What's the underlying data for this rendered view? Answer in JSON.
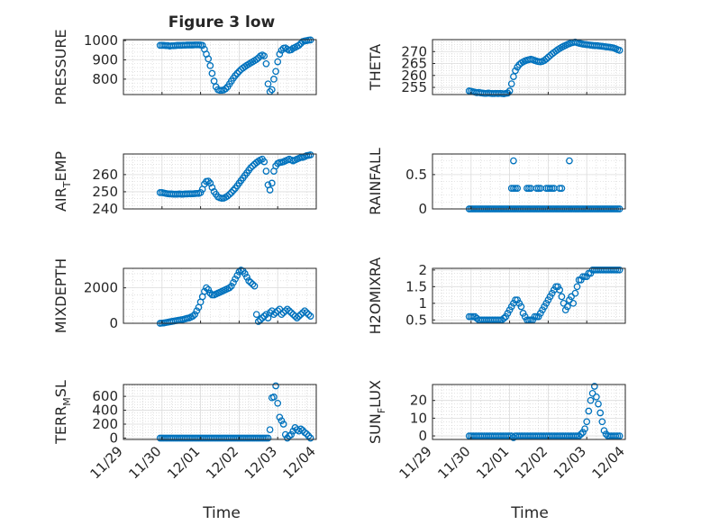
{
  "figure": {
    "title": "Figure 3 low",
    "xlabel": "Time",
    "x_ticks": [
      "11/29",
      "11/30",
      "12/01",
      "12/02",
      "12/03",
      "12/04"
    ]
  },
  "chart_data": [
    {
      "type": "scatter",
      "ylabel": "PRESSURE",
      "grid": true,
      "color": "#0072BD",
      "xlim": [
        0,
        5
      ],
      "ylim": [
        720,
        1005
      ],
      "yticks": [
        800,
        900,
        1000
      ],
      "x": [
        0.95,
        1.0,
        1.05,
        1.1,
        1.15,
        1.2,
        1.25,
        1.3,
        1.35,
        1.4,
        1.45,
        1.5,
        1.55,
        1.6,
        1.65,
        1.7,
        1.75,
        1.8,
        1.85,
        1.9,
        1.95,
        2.0,
        2.05,
        2.1,
        2.15,
        2.2,
        2.25,
        2.3,
        2.35,
        2.4,
        2.45,
        2.5,
        2.55,
        2.6,
        2.65,
        2.7,
        2.75,
        2.8,
        2.85,
        2.9,
        2.95,
        3.0,
        3.05,
        3.1,
        3.15,
        3.2,
        3.25,
        3.3,
        3.35,
        3.4,
        3.45,
        3.5,
        3.55,
        3.6,
        3.65,
        3.7,
        3.75,
        3.8,
        3.85,
        3.9,
        3.95,
        4.0,
        4.05,
        4.1,
        4.15,
        4.2,
        4.25,
        4.3,
        4.35,
        4.4,
        4.45,
        4.5,
        4.55,
        4.6,
        4.65,
        4.7,
        4.75,
        4.8,
        4.85
      ],
      "y": [
        975,
        975,
        975,
        974,
        974,
        972,
        973,
        973,
        974,
        975,
        975,
        975,
        976,
        976,
        977,
        977,
        977,
        977,
        978,
        978,
        978,
        977,
        975,
        955,
        930,
        905,
        870,
        830,
        790,
        760,
        745,
        742,
        742,
        744,
        750,
        760,
        775,
        790,
        805,
        818,
        830,
        840,
        850,
        858,
        865,
        872,
        878,
        884,
        890,
        896,
        902,
        910,
        920,
        925,
        920,
        880,
        775,
        735,
        745,
        800,
        840,
        890,
        930,
        950,
        960,
        962,
        955,
        950,
        952,
        960,
        965,
        970,
        975,
        985,
        995,
        998,
        1000,
        1002,
        1003
      ]
    },
    {
      "type": "scatter",
      "ylabel": "THETA",
      "grid": true,
      "color": "#0072BD",
      "xlim": [
        0,
        5
      ],
      "ylim": [
        252,
        275
      ],
      "yticks": [
        255,
        260,
        265,
        270
      ],
      "x": [
        0.95,
        1.0,
        1.05,
        1.1,
        1.15,
        1.2,
        1.25,
        1.3,
        1.35,
        1.4,
        1.45,
        1.5,
        1.55,
        1.6,
        1.65,
        1.7,
        1.75,
        1.8,
        1.85,
        1.9,
        1.95,
        2.0,
        2.05,
        2.1,
        2.15,
        2.2,
        2.25,
        2.3,
        2.35,
        2.4,
        2.45,
        2.5,
        2.55,
        2.6,
        2.65,
        2.7,
        2.75,
        2.8,
        2.85,
        2.9,
        2.95,
        3.0,
        3.05,
        3.1,
        3.15,
        3.2,
        3.25,
        3.3,
        3.35,
        3.4,
        3.45,
        3.5,
        3.55,
        3.6,
        3.65,
        3.7,
        3.75,
        3.8,
        3.85,
        3.9,
        3.95,
        4.0,
        4.05,
        4.1,
        4.15,
        4.2,
        4.25,
        4.3,
        4.35,
        4.4,
        4.45,
        4.5,
        4.55,
        4.6,
        4.65,
        4.7,
        4.75,
        4.8,
        4.85
      ],
      "y": [
        253.5,
        253.4,
        253.2,
        253.0,
        252.8,
        252.9,
        252.7,
        252.6,
        252.5,
        252.5,
        252.6,
        252.5,
        252.4,
        252.4,
        252.5,
        252.4,
        252.5,
        252.4,
        252.3,
        252.5,
        252.6,
        253.5,
        256.5,
        259.5,
        262,
        263.5,
        264.5,
        265.2,
        265.7,
        266.1,
        266.4,
        266.6,
        266.8,
        266.6,
        266.3,
        266.0,
        265.8,
        265.7,
        265.9,
        266.3,
        266.9,
        267.6,
        268.3,
        269.0,
        269.6,
        270.2,
        270.8,
        271.3,
        271.8,
        272.2,
        272.6,
        273.0,
        273.3,
        273.6,
        273.8,
        274.0,
        273.7,
        273.5,
        273.3,
        273.1,
        273.0,
        272.9,
        272.8,
        272.7,
        272.6,
        272.5,
        272.5,
        272.4,
        272.3,
        272.2,
        272.1,
        272.0,
        271.9,
        271.8,
        271.7,
        271.5,
        271.2,
        270.8,
        270.5
      ]
    },
    {
      "type": "scatter",
      "ylabel": "AIR_TEMP",
      "grid": true,
      "color": "#0072BD",
      "xlim": [
        0,
        5
      ],
      "ylim": [
        240,
        272
      ],
      "yticks": [
        240,
        250,
        260
      ],
      "x": [
        0.95,
        1.0,
        1.05,
        1.1,
        1.15,
        1.2,
        1.25,
        1.3,
        1.35,
        1.4,
        1.45,
        1.5,
        1.55,
        1.6,
        1.65,
        1.7,
        1.75,
        1.8,
        1.85,
        1.9,
        1.95,
        2.0,
        2.05,
        2.1,
        2.15,
        2.2,
        2.25,
        2.3,
        2.35,
        2.4,
        2.45,
        2.5,
        2.55,
        2.6,
        2.65,
        2.7,
        2.75,
        2.8,
        2.85,
        2.9,
        2.95,
        3.0,
        3.05,
        3.1,
        3.15,
        3.2,
        3.25,
        3.3,
        3.35,
        3.4,
        3.45,
        3.5,
        3.55,
        3.6,
        3.65,
        3.7,
        3.75,
        3.8,
        3.85,
        3.9,
        3.95,
        4.0,
        4.05,
        4.1,
        4.15,
        4.2,
        4.25,
        4.3,
        4.35,
        4.4,
        4.45,
        4.5,
        4.55,
        4.6,
        4.65,
        4.7,
        4.75,
        4.8,
        4.85
      ],
      "y": [
        249.5,
        249.5,
        249.3,
        249.0,
        248.8,
        248.7,
        248.7,
        248.6,
        248.6,
        248.6,
        248.7,
        248.6,
        248.6,
        248.7,
        248.7,
        248.8,
        248.8,
        248.8,
        248.9,
        249.0,
        249.0,
        249.5,
        251.5,
        254.5,
        256.0,
        256.2,
        255.0,
        252.5,
        250.0,
        248.5,
        247.0,
        246.5,
        246.2,
        246.3,
        246.8,
        247.5,
        248.5,
        249.5,
        250.8,
        252.0,
        253.5,
        255.0,
        256.5,
        258.0,
        259.5,
        261.0,
        262.5,
        264.0,
        265.0,
        266.0,
        267.0,
        267.8,
        268.5,
        269.0,
        267.5,
        262.0,
        254.0,
        251.0,
        255.0,
        262.0,
        265.0,
        266.5,
        267.0,
        267.2,
        267.5,
        268.0,
        268.5,
        269.0,
        268.5,
        268.0,
        268.5,
        269.0,
        269.5,
        270.0,
        270.0,
        270.5,
        271.0,
        271.2,
        271.5
      ]
    },
    {
      "type": "scatter",
      "ylabel": "RAINFALL",
      "grid": true,
      "color": "#0072BD",
      "xlim": [
        0,
        5
      ],
      "ylim": [
        0,
        0.8
      ],
      "yticks": [
        0,
        0.5
      ],
      "x": [
        0.95,
        1.0,
        1.05,
        1.1,
        1.15,
        1.2,
        1.25,
        1.3,
        1.35,
        1.4,
        1.45,
        1.5,
        1.55,
        1.6,
        1.65,
        1.7,
        1.75,
        1.8,
        1.85,
        1.9,
        1.95,
        2.0,
        2.05,
        2.1,
        2.15,
        2.2,
        2.25,
        2.3,
        2.35,
        2.4,
        2.45,
        2.5,
        2.55,
        2.6,
        2.65,
        2.7,
        2.75,
        2.8,
        2.85,
        2.9,
        2.95,
        3.0,
        3.05,
        3.1,
        3.15,
        3.2,
        3.25,
        3.3,
        3.35,
        3.4,
        3.45,
        3.5,
        3.55,
        3.6,
        3.65,
        3.7,
        3.75,
        3.8,
        3.85,
        3.9,
        3.95,
        4.0,
        4.05,
        4.1,
        4.15,
        4.2,
        4.25,
        4.3,
        4.35,
        4.4,
        4.45,
        4.5,
        4.55,
        4.6,
        4.65,
        4.7,
        4.75,
        4.8,
        4.85,
        2.05,
        2.1,
        2.15,
        2.2,
        2.45,
        2.5,
        2.55,
        2.7,
        2.75,
        2.8,
        2.95,
        3.0,
        3.05,
        3.1,
        3.15,
        3.3,
        3.35,
        2.1,
        3.55
      ],
      "y": [
        0,
        0,
        0,
        0,
        0,
        0,
        0,
        0,
        0,
        0,
        0,
        0,
        0,
        0,
        0,
        0,
        0,
        0,
        0,
        0,
        0,
        0,
        0,
        0,
        0,
        0,
        0,
        0,
        0,
        0,
        0,
        0,
        0,
        0,
        0,
        0,
        0,
        0,
        0,
        0,
        0,
        0,
        0,
        0,
        0,
        0,
        0,
        0,
        0,
        0,
        0,
        0,
        0,
        0,
        0,
        0,
        0,
        0,
        0,
        0,
        0,
        0,
        0,
        0,
        0,
        0,
        0,
        0,
        0,
        0,
        0,
        0,
        0,
        0,
        0,
        0,
        0,
        0,
        0,
        0.3,
        0.3,
        0.3,
        0.3,
        0.3,
        0.3,
        0.3,
        0.3,
        0.3,
        0.3,
        0.3,
        0.3,
        0.3,
        0.3,
        0.3,
        0.3,
        0.3,
        0.7,
        0.7
      ]
    },
    {
      "type": "scatter",
      "ylabel": "MIXDEPTH",
      "grid": true,
      "color": "#0072BD",
      "xlim": [
        0,
        5
      ],
      "ylim": [
        0,
        3100
      ],
      "yticks": [
        0,
        2000
      ],
      "x": [
        0.95,
        1.0,
        1.05,
        1.1,
        1.15,
        1.2,
        1.25,
        1.3,
        1.35,
        1.4,
        1.45,
        1.5,
        1.55,
        1.6,
        1.65,
        1.7,
        1.75,
        1.8,
        1.85,
        1.9,
        1.95,
        2.0,
        2.05,
        2.1,
        2.15,
        2.2,
        2.25,
        2.3,
        2.35,
        2.4,
        2.45,
        2.5,
        2.55,
        2.6,
        2.65,
        2.7,
        2.75,
        2.8,
        2.85,
        2.9,
        2.95,
        3.0,
        3.05,
        3.1,
        3.15,
        3.2,
        3.25,
        3.3,
        3.35,
        3.4,
        3.45,
        3.5,
        3.55,
        3.6,
        3.65,
        3.7,
        3.75,
        3.8,
        3.85,
        3.9,
        3.95,
        4.0,
        4.05,
        4.1,
        4.15,
        4.2,
        4.25,
        4.3,
        4.35,
        4.4,
        4.45,
        4.5,
        4.55,
        4.6,
        4.65,
        4.7,
        4.75,
        4.8,
        4.85
      ],
      "y": [
        0,
        10,
        20,
        40,
        60,
        80,
        100,
        120,
        140,
        160,
        180,
        200,
        220,
        250,
        280,
        300,
        350,
        400,
        500,
        700,
        900,
        1200,
        1500,
        1800,
        2000,
        1900,
        1700,
        1600,
        1600,
        1650,
        1700,
        1750,
        1800,
        1850,
        1900,
        1950,
        2000,
        2100,
        2300,
        2500,
        2700,
        2900,
        3000,
        2950,
        2800,
        2600,
        2400,
        2300,
        2200,
        2100,
        500,
        100,
        200,
        300,
        400,
        500,
        300,
        600,
        700,
        500,
        600,
        700,
        800,
        500,
        600,
        700,
        800,
        700,
        600,
        500,
        400,
        300,
        400,
        500,
        600,
        700,
        600,
        500,
        400
      ]
    },
    {
      "type": "scatter",
      "ylabel": "H2OMIXRA",
      "grid": true,
      "color": "#0072BD",
      "xlim": [
        0,
        5
      ],
      "ylim": [
        0.4,
        2.05
      ],
      "yticks": [
        0.5,
        1,
        1.5,
        2
      ],
      "x": [
        0.95,
        1.0,
        1.05,
        1.1,
        1.15,
        1.2,
        1.25,
        1.3,
        1.35,
        1.4,
        1.45,
        1.5,
        1.55,
        1.6,
        1.65,
        1.7,
        1.75,
        1.8,
        1.85,
        1.9,
        1.95,
        2.0,
        2.05,
        2.1,
        2.15,
        2.2,
        2.25,
        2.3,
        2.35,
        2.4,
        2.45,
        2.5,
        2.55,
        2.6,
        2.65,
        2.7,
        2.75,
        2.8,
        2.85,
        2.9,
        2.95,
        3.0,
        3.05,
        3.1,
        3.15,
        3.2,
        3.25,
        3.3,
        3.35,
        3.4,
        3.45,
        3.5,
        3.55,
        3.6,
        3.65,
        3.7,
        3.75,
        3.8,
        3.85,
        3.9,
        3.95,
        4.0,
        4.05,
        4.1,
        4.15,
        4.2,
        4.25,
        4.3,
        4.35,
        4.4,
        4.45,
        4.5,
        4.55,
        4.6,
        4.65,
        4.7,
        4.75,
        4.8,
        4.85
      ],
      "y": [
        0.6,
        0.6,
        0.6,
        0.6,
        0.55,
        0.5,
        0.5,
        0.5,
        0.5,
        0.5,
        0.5,
        0.5,
        0.5,
        0.5,
        0.5,
        0.5,
        0.5,
        0.5,
        0.55,
        0.6,
        0.7,
        0.8,
        0.9,
        1.0,
        1.1,
        1.1,
        1.0,
        0.9,
        0.7,
        0.6,
        0.5,
        0.5,
        0.5,
        0.5,
        0.6,
        0.6,
        0.6,
        0.7,
        0.8,
        0.9,
        1.0,
        1.1,
        1.2,
        1.3,
        1.4,
        1.5,
        1.5,
        1.4,
        1.2,
        1.0,
        0.8,
        0.9,
        1.1,
        1.2,
        1.0,
        1.3,
        1.5,
        1.7,
        1.7,
        1.8,
        1.8,
        1.8,
        1.9,
        1.9,
        2.0,
        2.0,
        2.0,
        2.0,
        2.0,
        2.0,
        2.0,
        2.0,
        2.0,
        2.0,
        2.0,
        2.0,
        2.0,
        2.0,
        2.0
      ]
    },
    {
      "type": "scatter",
      "ylabel": "TERR_MSL",
      "grid": true,
      "color": "#0072BD",
      "xlim": [
        0,
        5
      ],
      "ylim": [
        -20,
        770
      ],
      "yticks": [
        0,
        200,
        400,
        600
      ],
      "x": [
        0.95,
        1.0,
        1.05,
        1.1,
        1.15,
        1.2,
        1.25,
        1.3,
        1.35,
        1.4,
        1.45,
        1.5,
        1.55,
        1.6,
        1.65,
        1.7,
        1.75,
        1.8,
        1.85,
        1.9,
        1.95,
        2.0,
        2.05,
        2.1,
        2.15,
        2.2,
        2.25,
        2.3,
        2.35,
        2.4,
        2.45,
        2.5,
        2.55,
        2.6,
        2.65,
        2.7,
        2.75,
        2.8,
        2.85,
        2.9,
        2.95,
        3.0,
        3.05,
        3.1,
        3.15,
        3.2,
        3.25,
        3.3,
        3.35,
        3.4,
        3.45,
        3.5,
        3.55,
        3.6,
        3.65,
        3.7,
        3.75,
        3.8,
        3.85,
        3.9,
        3.95,
        4.0,
        4.05,
        4.1,
        4.15,
        4.2,
        4.25,
        4.3,
        4.35,
        4.4,
        4.45,
        4.5,
        4.55,
        4.6,
        4.65,
        4.7,
        4.75,
        4.8,
        4.85
      ],
      "y": [
        0,
        0,
        0,
        0,
        0,
        0,
        0,
        0,
        0,
        0,
        0,
        0,
        0,
        0,
        0,
        0,
        0,
        0,
        0,
        0,
        0,
        0,
        0,
        0,
        0,
        0,
        0,
        0,
        0,
        0,
        0,
        0,
        0,
        0,
        0,
        0,
        0,
        0,
        0,
        0,
        0,
        0,
        0,
        0,
        0,
        0,
        0,
        0,
        0,
        0,
        0,
        0,
        0,
        0,
        0,
        0,
        0,
        120,
        580,
        590,
        750,
        500,
        300,
        250,
        200,
        50,
        0,
        30,
        50,
        100,
        150,
        120,
        100,
        130,
        110,
        80,
        60,
        30,
        0
      ]
    },
    {
      "type": "scatter",
      "ylabel": "SUN_FLUX",
      "grid": true,
      "color": "#0072BD",
      "xlim": [
        0,
        5
      ],
      "ylim": [
        -2,
        29
      ],
      "yticks": [
        0,
        10,
        20
      ],
      "x": [
        0.95,
        1.0,
        1.05,
        1.1,
        1.15,
        1.2,
        1.25,
        1.3,
        1.35,
        1.4,
        1.45,
        1.5,
        1.55,
        1.6,
        1.65,
        1.7,
        1.75,
        1.8,
        1.85,
        1.9,
        1.95,
        2.0,
        2.05,
        2.1,
        2.15,
        2.2,
        2.25,
        2.3,
        2.35,
        2.4,
        2.45,
        2.5,
        2.55,
        2.6,
        2.65,
        2.7,
        2.75,
        2.8,
        2.85,
        2.9,
        2.95,
        3.0,
        3.05,
        3.1,
        3.15,
        3.2,
        3.25,
        3.3,
        3.35,
        3.4,
        3.45,
        3.5,
        3.55,
        3.6,
        3.65,
        3.7,
        3.75,
        3.8,
        3.85,
        3.9,
        3.95,
        4.0,
        4.05,
        4.1,
        4.15,
        4.2,
        4.25,
        4.3,
        4.35,
        4.4,
        4.45,
        4.5,
        4.55,
        4.6,
        4.65,
        4.7,
        4.75,
        4.8,
        4.85
      ],
      "y": [
        0,
        0,
        0,
        0,
        0,
        0,
        0,
        0,
        0,
        0,
        0,
        0,
        0,
        0,
        0,
        0,
        0,
        0,
        0,
        0,
        0,
        0,
        0,
        -1,
        0,
        0,
        0,
        0,
        0,
        0,
        0,
        0,
        0,
        0,
        0,
        0,
        0,
        0,
        0,
        0,
        0,
        0,
        0,
        0,
        0,
        0,
        0,
        0,
        0,
        0,
        0,
        0,
        0,
        0,
        0,
        0,
        0,
        0,
        1,
        2,
        4,
        8,
        14,
        20,
        24,
        28,
        22,
        18,
        13,
        8,
        3,
        1,
        0,
        0,
        0,
        0,
        0,
        0,
        0
      ]
    }
  ]
}
